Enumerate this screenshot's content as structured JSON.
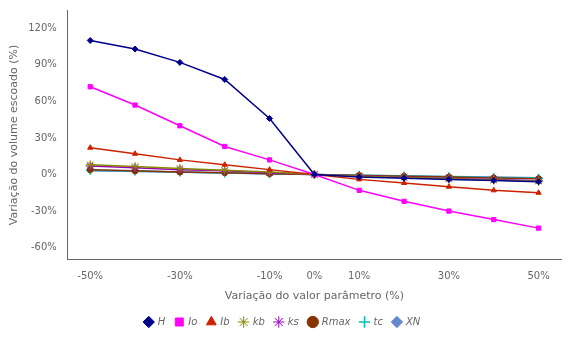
{
  "chart_data": {
    "type": "line",
    "x_label": "Variação do valor parâmetro (%)",
    "y_label": "Variação do volume escoado (%)",
    "x": [
      -50,
      -40,
      -30,
      -20,
      -10,
      0,
      10,
      20,
      30,
      40,
      50
    ],
    "series": [
      {
        "name": "H",
        "color": "#00008B",
        "marker": "diamond",
        "values": [
          110,
          103,
          92,
          78,
          46,
          0,
          -2,
          -3,
          -4,
          -5,
          -6
        ]
      },
      {
        "name": "Io",
        "color": "#FF00FF",
        "marker": "square",
        "values": [
          72,
          57,
          40,
          23,
          12,
          0,
          -13,
          -22,
          -30,
          -37,
          -44
        ]
      },
      {
        "name": "Ib",
        "color": "#CC2200",
        "marker": "triangle",
        "values": [
          22,
          17,
          12,
          8,
          4,
          0,
          -4,
          -7,
          -10,
          -13,
          -15
        ]
      },
      {
        "name": "kb",
        "color": "#888800",
        "marker": "star",
        "values": [
          8,
          6.5,
          5,
          3.5,
          2,
          0,
          -1.5,
          -2.5,
          -3.5,
          -4.5,
          -5.5
        ]
      },
      {
        "name": "ks",
        "color": "#9900BB",
        "marker": "star",
        "values": [
          7,
          5.5,
          4,
          3,
          1.5,
          0,
          -1.2,
          -2.2,
          -3.2,
          -4.2,
          -5.2
        ]
      },
      {
        "name": "Rmax",
        "color": "#883300",
        "marker": "circle",
        "values": [
          4,
          3,
          2,
          1.5,
          0.7,
          0,
          -0.8,
          -1.5,
          -2,
          -2.8,
          -3.5
        ]
      },
      {
        "name": "tc",
        "color": "#00BBBB",
        "marker": "plus",
        "values": [
          3.5,
          2.8,
          2,
          1.2,
          0.6,
          0,
          -0.6,
          -1.2,
          -1.8,
          -2.4,
          -3.0
        ]
      },
      {
        "name": "XN",
        "color": "#6688CC",
        "marker": "diamond",
        "values": [
          3.0,
          2.4,
          1.8,
          1.2,
          0.6,
          0,
          -0.6,
          -1.1,
          -1.6,
          -2.1,
          -2.6
        ]
      }
    ],
    "xlim": [
      -55,
      55
    ],
    "xticks": [
      {
        "value": -50,
        "label": "-50%"
      },
      {
        "value": -30,
        "label": "-30%"
      },
      {
        "value": -10,
        "label": "-10%"
      },
      {
        "value": 0,
        "label": "0%"
      },
      {
        "value": 10,
        "label": "10%"
      },
      {
        "value": 30,
        "label": "30%"
      },
      {
        "value": 50,
        "label": "50%"
      }
    ],
    "ylim": [
      -70,
      135
    ],
    "yticks": [
      {
        "value": -60,
        "label": "-60%"
      },
      {
        "value": -30,
        "label": "-30%"
      },
      {
        "value": 0,
        "label": "0%"
      },
      {
        "value": 30,
        "label": "30%"
      },
      {
        "value": 60,
        "label": "60%"
      },
      {
        "value": 90,
        "label": "90%"
      },
      {
        "value": 120,
        "label": "120%"
      }
    ],
    "grid": false,
    "legend": "bottom"
  }
}
